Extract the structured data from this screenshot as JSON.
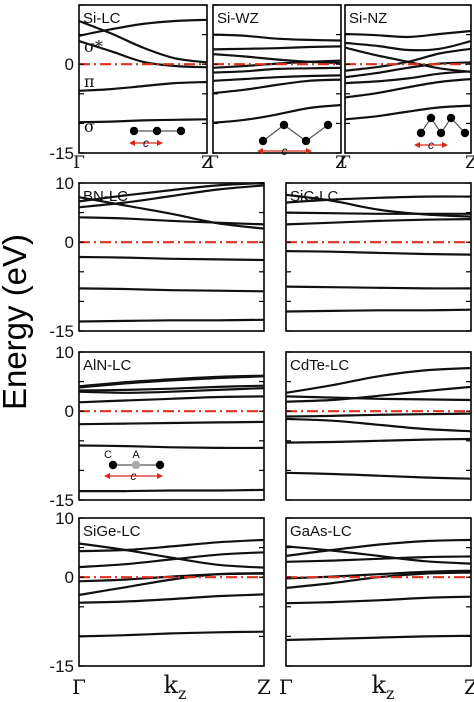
{
  "figure": {
    "ylabel": "Energy (eV)",
    "tick_labels": {
      "gamma": "Γ",
      "z": "Z",
      "kz_main": "k",
      "kz_sub": "z",
      "c": "c"
    },
    "atom_labels": {
      "c_atom": "C",
      "a_atom": "A"
    },
    "band_labels": {
      "sigma_star": "σ*",
      "pi": "π",
      "sigma": "σ"
    },
    "colors": {
      "band": "#111111",
      "fermi": "#e0301e",
      "arrow": "#d62a1a",
      "atom_gray": "#aaaaaa"
    }
  },
  "chart_data": [
    {
      "type": "line",
      "title": "Si-LC",
      "x": [
        0,
        0.25,
        0.5,
        0.75,
        1
      ],
      "ylim": [
        -15,
        10
      ],
      "yticks": [
        "0",
        "-15"
      ],
      "series": [
        {
          "values": [
            4.8,
            5.9,
            6.8,
            7.3,
            7.5
          ]
        },
        {
          "values": [
            3.9,
            2.2,
            0.4,
            -0.3,
            -0.5
          ]
        },
        {
          "values": [
            7.3,
            5.2,
            2.8,
            1.0,
            0.3
          ]
        },
        {
          "values": [
            -4.5,
            -4.2,
            -3.7,
            -3.2,
            -3.0
          ]
        },
        {
          "values": [
            -9.8,
            -9.7,
            -9.5,
            -9.4,
            -9.3
          ]
        }
      ]
    },
    {
      "type": "line",
      "title": "Si-WZ",
      "x": [
        0,
        0.25,
        0.5,
        0.75,
        1
      ],
      "ylim": [
        -15,
        10
      ],
      "series": [
        {
          "values": [
            5.0,
            4.8,
            4.3,
            4.1,
            4.0
          ]
        },
        {
          "values": [
            2.5,
            2.6,
            2.7,
            2.9,
            3.0
          ]
        },
        {
          "values": [
            1.7,
            1.3,
            0.8,
            0.4,
            0.2
          ]
        },
        {
          "values": [
            -0.6,
            -0.3,
            0.1,
            0.4,
            0.6
          ]
        },
        {
          "values": [
            -1.4,
            -1.2,
            -0.8,
            -0.7,
            -0.6
          ]
        },
        {
          "values": [
            -2.8,
            -2.5,
            -2.2,
            -2.0,
            -1.9
          ]
        },
        {
          "values": [
            -4.9,
            -4.3,
            -3.5,
            -2.8,
            -2.6
          ]
        },
        {
          "values": [
            -9.9,
            -9.4,
            -8.5,
            -7.4,
            -6.9
          ]
        }
      ]
    },
    {
      "type": "line",
      "title": "Si-NZ",
      "x": [
        0,
        0.25,
        0.5,
        0.75,
        1
      ],
      "ylim": [
        -15,
        10
      ],
      "series": [
        {
          "values": [
            5.1,
            4.9,
            4.6,
            5.1,
            5.6
          ]
        },
        {
          "values": [
            3.6,
            3.1,
            2.4,
            2.6,
            3.9
          ]
        },
        {
          "values": [
            2.8,
            1.5,
            0.4,
            -0.7,
            -1.3
          ]
        },
        {
          "values": [
            -1.1,
            -0.5,
            0.4,
            1.8,
            2.6
          ]
        },
        {
          "values": [
            -2.2,
            -1.5,
            -0.6,
            0.1,
            0.3
          ]
        },
        {
          "values": [
            -3.2,
            -2.9,
            -2.4,
            -1.6,
            -1.2
          ]
        },
        {
          "values": [
            -5.6,
            -4.9,
            -3.9,
            -3.0,
            -2.5
          ]
        },
        {
          "values": [
            -9.3,
            -8.8,
            -8.0,
            -7.3,
            -7.0
          ]
        }
      ]
    },
    {
      "type": "line",
      "title": "BN-LC",
      "x": [
        0,
        0.25,
        0.5,
        0.75,
        1
      ],
      "ylim": [
        -15,
        10
      ],
      "yticks": [
        "10",
        "0",
        "-15"
      ],
      "series": [
        {
          "values": [
            6.9,
            7.9,
            8.8,
            9.6,
            10.0
          ]
        },
        {
          "values": [
            5.9,
            6.7,
            7.8,
            8.9,
            9.6
          ]
        },
        {
          "values": [
            7.6,
            6.2,
            4.8,
            3.2,
            2.3
          ]
        },
        {
          "values": [
            4.2,
            4.0,
            3.6,
            3.3,
            3.0
          ]
        },
        {
          "values": [
            -2.5,
            -2.6,
            -2.8,
            -2.9,
            -3.0
          ]
        },
        {
          "values": [
            -7.8,
            -7.9,
            -8.1,
            -8.2,
            -8.3
          ]
        },
        {
          "values": [
            -13.4,
            -13.3,
            -13.2,
            -13.2,
            -13.1
          ]
        }
      ]
    },
    {
      "type": "line",
      "title": "SiC-LC",
      "x": [
        0,
        0.25,
        0.5,
        0.75,
        1
      ],
      "ylim": [
        -15,
        10
      ],
      "series": [
        {
          "values": [
            3.0,
            3.3,
            3.6,
            3.8,
            3.9
          ]
        },
        {
          "values": [
            5.0,
            4.9,
            4.8,
            4.8,
            4.8
          ]
        },
        {
          "values": [
            6.7,
            7.2,
            7.5,
            7.7,
            7.7
          ]
        },
        {
          "values": [
            8.0,
            7.0,
            5.5,
            4.7,
            4.3
          ]
        },
        {
          "values": [
            -1.5,
            -1.6,
            -1.8,
            -2.0,
            -2.1
          ]
        },
        {
          "values": [
            -7.5,
            -7.6,
            -7.7,
            -7.8,
            -7.8
          ]
        },
        {
          "values": [
            -11.7,
            -11.6,
            -11.5,
            -11.5,
            -11.4
          ]
        }
      ]
    },
    {
      "type": "line",
      "title": "AlN-LC",
      "x": [
        0,
        0.25,
        0.5,
        0.75,
        1
      ],
      "ylim": [
        -15,
        10
      ],
      "yticks": [
        "10",
        "0",
        "-15"
      ],
      "series": [
        {
          "values": [
            4.2,
            4.9,
            5.4,
            5.8,
            6.0
          ]
        },
        {
          "values": [
            4.0,
            4.7,
            5.2,
            5.6,
            5.9
          ]
        },
        {
          "values": [
            3.5,
            3.6,
            3.8,
            4.1,
            4.3
          ]
        },
        {
          "values": [
            3.3,
            3.1,
            3.3,
            3.6,
            3.9
          ]
        },
        {
          "values": [
            1.5,
            1.8,
            2.1,
            2.4,
            2.5
          ]
        },
        {
          "values": [
            -2.2,
            -2.1,
            -2.0,
            -1.9,
            -1.8
          ]
        },
        {
          "values": [
            -5.8,
            -5.9,
            -6.1,
            -6.2,
            -6.2
          ]
        },
        {
          "values": [
            -13.5,
            -13.5,
            -13.4,
            -13.4,
            -13.3
          ]
        }
      ]
    },
    {
      "type": "line",
      "title": "CdTe-LC",
      "x": [
        0,
        0.25,
        0.5,
        0.75,
        1
      ],
      "ylim": [
        -15,
        10
      ],
      "series": [
        {
          "values": [
            3.1,
            4.4,
            5.9,
            6.9,
            7.3
          ]
        },
        {
          "values": [
            1.6,
            1.9,
            2.6,
            3.4,
            4.1
          ]
        },
        {
          "values": [
            2.5,
            2.3,
            2.1,
            2.0,
            1.9
          ]
        },
        {
          "values": [
            -0.9,
            -0.8,
            -0.6,
            -0.5,
            -0.4
          ]
        },
        {
          "values": [
            -1.3,
            -1.6,
            -2.3,
            -3.0,
            -3.4
          ]
        },
        {
          "values": [
            -5.3,
            -5.2,
            -5.0,
            -4.8,
            -4.7
          ]
        },
        {
          "values": [
            -10.4,
            -10.6,
            -10.9,
            -11.2,
            -11.4
          ]
        }
      ]
    },
    {
      "type": "line",
      "title": "SiGe-LC",
      "x": [
        0,
        0.25,
        0.5,
        0.75,
        1
      ],
      "ylim": [
        -15,
        10
      ],
      "yticks": [
        "10",
        "0",
        "-15"
      ],
      "series": [
        {
          "values": [
            4.4,
            4.6,
            5.2,
            5.9,
            6.3
          ]
        },
        {
          "values": [
            5.7,
            4.6,
            3.3,
            2.1,
            1.6
          ]
        },
        {
          "values": [
            1.7,
            2.2,
            3.0,
            3.8,
            4.2
          ]
        },
        {
          "values": [
            -0.7,
            -0.4,
            0.1,
            0.5,
            0.6
          ]
        },
        {
          "values": [
            -3.0,
            -1.7,
            -0.4,
            0.5,
            0.7
          ]
        },
        {
          "values": [
            -4.3,
            -4.1,
            -3.7,
            -3.2,
            -2.9
          ]
        },
        {
          "values": [
            -10.0,
            -9.8,
            -9.5,
            -9.3,
            -9.2
          ]
        }
      ]
    },
    {
      "type": "line",
      "title": "GaAs-LC",
      "x": [
        0,
        0.25,
        0.5,
        0.75,
        1
      ],
      "ylim": [
        -15,
        10
      ],
      "series": [
        {
          "values": [
            3.6,
            4.6,
            5.5,
            6.1,
            6.3
          ]
        },
        {
          "values": [
            2.6,
            2.8,
            3.1,
            3.4,
            3.5
          ]
        },
        {
          "values": [
            5.2,
            4.5,
            3.6,
            2.7,
            2.3
          ]
        },
        {
          "values": [
            -0.2,
            0.1,
            0.5,
            0.9,
            1.1
          ]
        },
        {
          "values": [
            -1.8,
            -1.0,
            0.0,
            0.6,
            0.8
          ]
        },
        {
          "values": [
            -4.4,
            -4.2,
            -3.9,
            -3.5,
            -3.3
          ]
        },
        {
          "values": [
            -10.6,
            -10.4,
            -10.2,
            -10.0,
            -9.9
          ]
        }
      ]
    }
  ]
}
